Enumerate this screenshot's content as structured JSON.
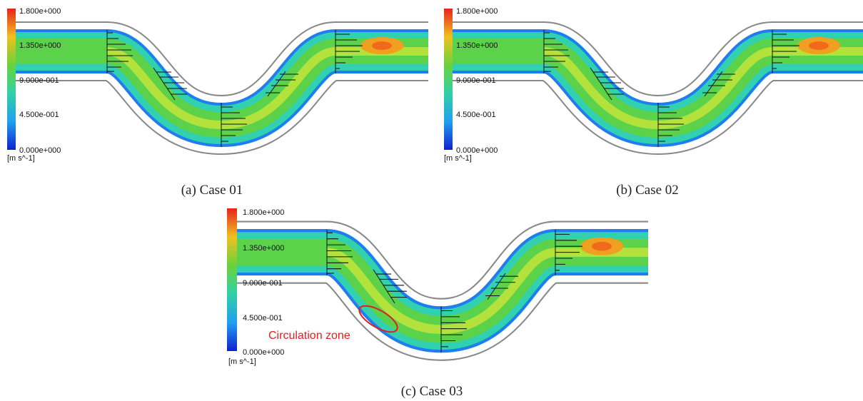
{
  "panels": [
    {
      "caption": "(a) Case 01",
      "colorbar": {
        "ticks": [
          "1.800e+000",
          "1.350e+000",
          "9.000e-001",
          "4.500e-001",
          "0.000e+000"
        ],
        "unit": "[m s^-1]"
      }
    },
    {
      "caption": "(b) Case 02",
      "colorbar": {
        "ticks": [
          "1.800e+000",
          "1.350e+000",
          "9.000e-001",
          "4.500e-001",
          "0.000e+000"
        ],
        "unit": "[m s^-1]"
      }
    },
    {
      "caption": "(c) Case 03",
      "colorbar": {
        "ticks": [
          "1.800e+000",
          "1.350e+000",
          "9.000e-001",
          "4.500e-001",
          "0.000e+000"
        ],
        "unit": "[m s^-1]"
      },
      "annotation": "Circulation zone"
    }
  ]
}
